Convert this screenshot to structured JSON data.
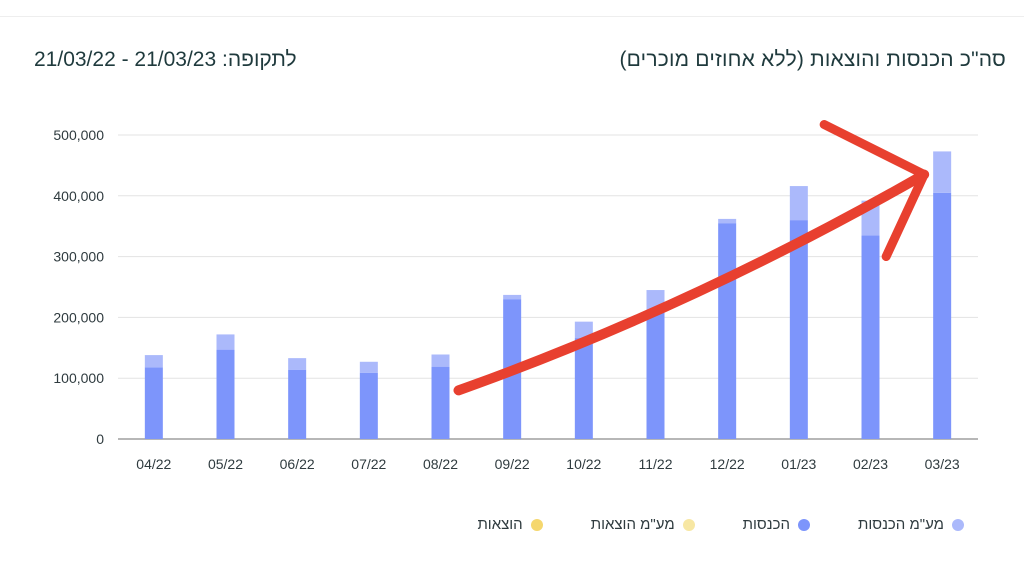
{
  "header": {
    "title": "סה\"כ הכנסות והוצאות (ללא אחוזים מוכרים)",
    "period": "לתקופה: 21/03/23 - 21/03/22"
  },
  "chart_data": {
    "type": "bar",
    "stacked": true,
    "categories": [
      "04/22",
      "05/22",
      "06/22",
      "07/22",
      "08/22",
      "09/22",
      "10/22",
      "11/22",
      "12/22",
      "01/23",
      "02/23",
      "03/23"
    ],
    "ylim": [
      0,
      500000
    ],
    "y_ticks": [
      0,
      100000,
      200000,
      300000,
      400000,
      500000
    ],
    "y_tick_labels": [
      "0",
      "100,000",
      "200,000",
      "300,000",
      "400,000",
      "500,000"
    ],
    "grid": true,
    "legend_position": "bottom",
    "series": [
      {
        "name": "הכנסות",
        "color": "#7d95fb",
        "values": [
          118000,
          147000,
          114000,
          109000,
          119000,
          230000,
          166000,
          210000,
          355000,
          360000,
          335000,
          405000
        ]
      },
      {
        "name": "מע\"מ הכנסות",
        "color": "#abb9fb",
        "values": [
          20000,
          25000,
          19000,
          18000,
          20000,
          7000,
          27000,
          35000,
          7000,
          56000,
          57000,
          68000
        ]
      },
      {
        "name": "הוצאות",
        "color": "#f5d76e",
        "values": [
          0,
          0,
          0,
          0,
          0,
          0,
          0,
          0,
          0,
          0,
          0,
          0
        ]
      },
      {
        "name": "מע\"מ הוצאות",
        "color": "#f7e7a3",
        "values": [
          0,
          0,
          0,
          0,
          0,
          0,
          0,
          0,
          0,
          0,
          0,
          0
        ]
      }
    ],
    "annotation": {
      "type": "arrow",
      "color": "#e8402f",
      "from_category": "08/22",
      "to_category": "03/23"
    }
  },
  "legend": [
    {
      "label": "מע\"מ הכנסות",
      "color": "#abb9fb"
    },
    {
      "label": "הכנסות",
      "color": "#7d95fb"
    },
    {
      "label": "מע\"מ הוצאות",
      "color": "#f7e7a3"
    },
    {
      "label": "הוצאות",
      "color": "#f5d76e"
    }
  ]
}
